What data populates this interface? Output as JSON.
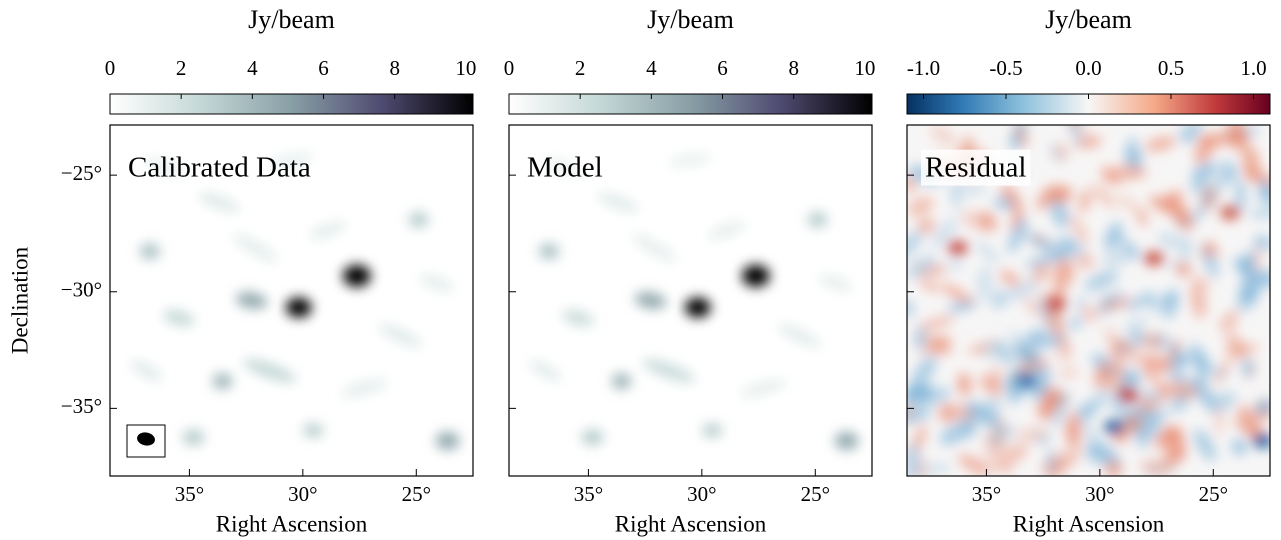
{
  "chart_data": [
    {
      "type": "image",
      "title": "Calibrated Data",
      "colormap": "bone_r",
      "colorbar_label": "Jy/beam",
      "clim": [
        0,
        10.2
      ],
      "cticks": [
        0,
        2,
        4,
        6,
        8,
        10
      ],
      "xlabel": "Right Ascension",
      "ylabel": "Declination",
      "xlim": [
        38.5,
        22.5
      ],
      "ylim": [
        -37.9,
        -22.85
      ],
      "xticks": [
        {
          "value": 35,
          "label": "35°"
        },
        {
          "value": 30,
          "label": "30°"
        },
        {
          "value": 25,
          "label": "25°"
        }
      ],
      "yticks": [
        {
          "value": -25,
          "label": "−25°"
        },
        {
          "value": -30,
          "label": "−30°"
        },
        {
          "value": -35,
          "label": "−35°"
        }
      ]
    },
    {
      "type": "image",
      "title": "Model",
      "colormap": "bone_r",
      "colorbar_label": "Jy/beam",
      "clim": [
        0,
        10.2
      ],
      "cticks": [
        0,
        2,
        4,
        6,
        8,
        10
      ],
      "xlabel": "Right Ascension",
      "xlim": [
        38.5,
        22.5
      ],
      "ylim": [
        -37.9,
        -22.85
      ],
      "xticks": [
        {
          "value": 35,
          "label": "35°"
        },
        {
          "value": 30,
          "label": "30°"
        },
        {
          "value": 25,
          "label": "25°"
        }
      ],
      "yticks": [
        -25,
        -30,
        -35
      ]
    },
    {
      "type": "image",
      "title": "Residual",
      "colormap": "RdBu_r",
      "colorbar_label": "Jy/beam",
      "clim": [
        -1.1,
        1.1
      ],
      "cticks": [
        {
          "value": -1,
          "label": "-1.0"
        },
        {
          "value": -0.5,
          "label": "-0.5"
        },
        {
          "value": 0,
          "label": "0.0"
        },
        0.5,
        {
          "value": 1,
          "label": "1.0"
        }
      ],
      "xlabel": "Right Ascension",
      "xlim": [
        38.5,
        22.5
      ],
      "ylim": [
        -37.9,
        -22.85
      ],
      "xticks": [
        {
          "value": 35,
          "label": "35°"
        },
        {
          "value": 30,
          "label": "30°"
        },
        {
          "value": 25,
          "label": "25°"
        }
      ],
      "yticks": [
        -25,
        -30,
        -35
      ]
    }
  ]
}
